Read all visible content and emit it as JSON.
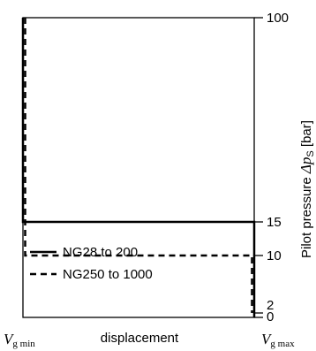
{
  "chart_data": {
    "type": "line",
    "x_axis": {
      "label": "displacement",
      "min_label": {
        "symbol": "V",
        "subscript": "g min"
      },
      "max_label": {
        "symbol": "V",
        "subscript": "g max"
      }
    },
    "y_axis": {
      "label_prefix": "Pilot pressure ",
      "label_symbol": "Δp",
      "label_subscript": "S",
      "label_unit": " [bar]",
      "ticks": [
        {
          "value": 0,
          "label": "0"
        },
        {
          "value": 2,
          "label": "2"
        },
        {
          "value": 10,
          "label": "10"
        },
        {
          "value": 15,
          "label": "15"
        },
        {
          "value": 100,
          "label": "100"
        }
      ],
      "ylim": [
        0,
        100
      ]
    },
    "series": [
      {
        "name": "NG28 to 200",
        "style": "solid",
        "points": [
          {
            "x": "Vg min",
            "y": 100
          },
          {
            "x": "Vg min",
            "y": 15
          },
          {
            "x": "Vg max",
            "y": 15
          },
          {
            "x": "Vg max",
            "y": 0
          }
        ]
      },
      {
        "name": "NG250 to 1000",
        "style": "dashed",
        "points": [
          {
            "x": "Vg min",
            "y": 100
          },
          {
            "x": "Vg min",
            "y": 10
          },
          {
            "x": "Vg max",
            "y": 10
          },
          {
            "x": "Vg max",
            "y": 2
          }
        ]
      }
    ],
    "legend": {
      "placement": "bottom-left"
    }
  }
}
